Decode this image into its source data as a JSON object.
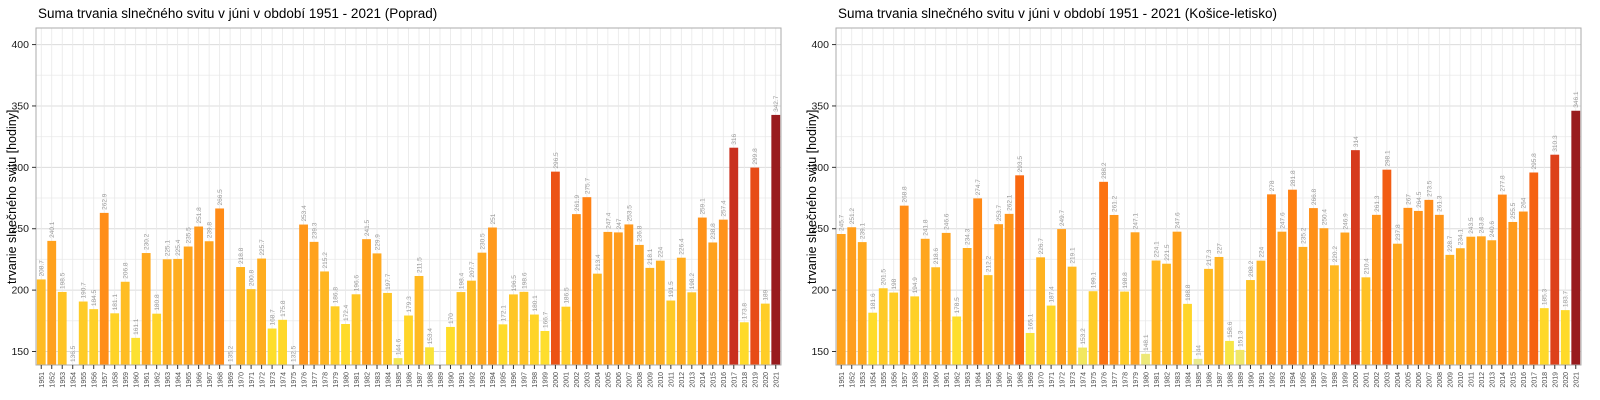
{
  "page": {
    "background": "#FFFFFF"
  },
  "palette": {
    "stops": [
      [
        0.0,
        "#E9E98C"
      ],
      [
        0.08,
        "#F8E53C"
      ],
      [
        0.18,
        "#FFDD2A"
      ],
      [
        0.32,
        "#FFC325"
      ],
      [
        0.46,
        "#FFAA1F"
      ],
      [
        0.58,
        "#FF961B"
      ],
      [
        0.68,
        "#FF8214"
      ],
      [
        0.74,
        "#F96810"
      ],
      [
        0.79,
        "#E94E16"
      ],
      [
        0.84,
        "#D63A1D"
      ],
      [
        0.89,
        "#C22D20"
      ],
      [
        0.94,
        "#AE2322"
      ],
      [
        1.0,
        "#991B1E"
      ]
    ],
    "bar_label_color": "#999999",
    "grid_major_color": "#DCDCDC",
    "grid_minor_color": "#EFEFEF",
    "grid_vertical_color": "#E8E8E8",
    "panel_border_color": "#ABABAB",
    "tick_color": "#333333",
    "axis_text_color": "#1A1A1A",
    "year_text_color": "#4D4D4D"
  },
  "chart_data": [
    {
      "type": "bar",
      "station": "Poprad",
      "title": "Suma trvania slnečného svitu v júni v období 1951 - 2021 (Poprad)",
      "ylabel": "trvanie slnečného svitu [hodiny]",
      "xlabel": "",
      "ylim": [
        139,
        413.5
      ],
      "yticks": [
        150,
        200,
        250,
        300,
        350,
        400
      ],
      "yticks_minor": [
        175,
        225,
        275,
        325,
        375
      ],
      "grid": true,
      "legend": false,
      "categories": [
        "1951",
        "1952",
        "1953",
        "1954",
        "1955",
        "1956",
        "1957",
        "1958",
        "1959",
        "1960",
        "1961",
        "1962",
        "1963",
        "1964",
        "1965",
        "1966",
        "1967",
        "1968",
        "1969",
        "1970",
        "1971",
        "1972",
        "1973",
        "1974",
        "1975",
        "1976",
        "1977",
        "1978",
        "1979",
        "1980",
        "1981",
        "1982",
        "1983",
        "1984",
        "1985",
        "1986",
        "1987",
        "1988",
        "1989",
        "1990",
        "1991",
        "1992",
        "1993",
        "1994",
        "1995",
        "1996",
        "1997",
        "1998",
        "1999",
        "2000",
        "2001",
        "2002",
        "2003",
        "2004",
        "2005",
        "2006",
        "2007",
        "2008",
        "2009",
        "2010",
        "2011",
        "2012",
        "2013",
        "2014",
        "2015",
        "2016",
        "2017",
        "2018",
        "2019",
        "2020",
        "2021"
      ],
      "values": [
        208.7,
        240.1,
        198.5,
        136.5,
        190.7,
        184.5,
        262.9,
        181.1,
        206.8,
        161.1,
        230.2,
        180.8,
        225.1,
        225.4,
        235.5,
        251.8,
        239.8,
        266.5,
        135.2,
        218.8,
        200.8,
        225.7,
        168.7,
        175.8,
        132.5,
        253.4,
        239.3,
        215.2,
        186.8,
        172.4,
        196.6,
        241.5,
        229.9,
        197.7,
        144.6,
        179.3,
        211.5,
        153.4,
        null,
        170,
        198.4,
        207.7,
        230.5,
        251,
        172.1,
        196.5,
        198.6,
        180.1,
        166.7,
        296.5,
        186.5,
        261.9,
        275.7,
        213.4,
        247.4,
        247,
        253.5,
        236.8,
        218.1,
        224,
        191.5,
        226.4,
        198.2,
        259.1,
        238.8,
        257.4,
        316,
        173.8,
        299.8,
        189,
        342.7
      ]
    },
    {
      "type": "bar",
      "station": "Košice-letisko",
      "title": "Suma trvania slnečného svitu v júni v období 1951 - 2021 (Košice-letisko)",
      "ylabel": "trvanie slnečného svitu [hodiny]",
      "xlabel": "",
      "ylim": [
        139,
        413.5
      ],
      "yticks": [
        150,
        200,
        250,
        300,
        350,
        400
      ],
      "yticks_minor": [
        175,
        225,
        275,
        325,
        375
      ],
      "grid": true,
      "legend": false,
      "categories": [
        "1951",
        "1952",
        "1953",
        "1954",
        "1955",
        "1956",
        "1957",
        "1958",
        "1959",
        "1960",
        "1961",
        "1962",
        "1963",
        "1964",
        "1965",
        "1966",
        "1967",
        "1968",
        "1969",
        "1970",
        "1971",
        "1972",
        "1973",
        "1974",
        "1975",
        "1976",
        "1977",
        "1978",
        "1979",
        "1980",
        "1981",
        "1982",
        "1983",
        "1984",
        "1985",
        "1986",
        "1987",
        "1988",
        "1989",
        "1990",
        "1991",
        "1992",
        "1993",
        "1994",
        "1995",
        "1996",
        "1997",
        "1998",
        "1999",
        "2000",
        "2001",
        "2002",
        "2003",
        "2004",
        "2005",
        "2006",
        "2007",
        "2008",
        "2009",
        "2010",
        "2011",
        "2012",
        "2013",
        "2014",
        "2015",
        "2016",
        "2017",
        "2018",
        "2019",
        "2020",
        "2021"
      ],
      "values": [
        245.7,
        251.2,
        239.1,
        181.6,
        201.5,
        198,
        268.8,
        194.9,
        241.8,
        218.6,
        246.6,
        178.5,
        234.3,
        274.7,
        212.2,
        253.7,
        262.1,
        293.5,
        165.1,
        226.7,
        187.4,
        249.7,
        219.1,
        153.2,
        199.1,
        288.2,
        261.2,
        198.8,
        247.1,
        148.1,
        224.1,
        221.5,
        247.6,
        188.8,
        144,
        217.3,
        227,
        158.6,
        151.3,
        208.2,
        224,
        278,
        247.6,
        281.8,
        235.2,
        266.8,
        250.4,
        220.2,
        246.9,
        314,
        210.4,
        261.3,
        298.1,
        237.8,
        267,
        264.5,
        273.5,
        261.3,
        228.7,
        234.1,
        243.5,
        243.8,
        240.6,
        277.8,
        255.5,
        264,
        295.8,
        185.3,
        310.3,
        183.7,
        346.1
      ]
    }
  ]
}
